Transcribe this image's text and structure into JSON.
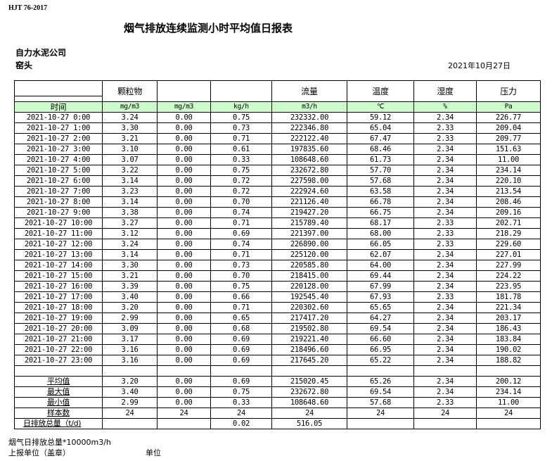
{
  "standard": "HJT  76-2017",
  "title": "烟气排放连续监测小时平均值日报表",
  "company": "自力水泥公司",
  "site": "窑头",
  "date": "2021年10月27日",
  "header": {
    "columns": [
      "",
      "颗粒物",
      "",
      "",
      "流量",
      "温度",
      "湿度",
      "压力"
    ],
    "units": [
      "时间",
      "mg/m3",
      "mg/m3",
      "kg/h",
      "m3/h",
      "℃",
      "%",
      "Pa"
    ]
  },
  "rows": [
    [
      "2021-10-27 0:00",
      "3.24",
      "0.00",
      "0.75",
      "232332.00",
      "59.12",
      "2.34",
      "226.77"
    ],
    [
      "2021-10-27 1:00",
      "3.30",
      "0.00",
      "0.73",
      "222346.80",
      "65.04",
      "2.33",
      "209.04"
    ],
    [
      "2021-10-27 2:00",
      "3.21",
      "0.00",
      "0.71",
      "222122.40",
      "67.47",
      "2.33",
      "209.77"
    ],
    [
      "2021-10-27 3:00",
      "3.10",
      "0.00",
      "0.61",
      "197835.60",
      "68.46",
      "2.34",
      "151.63"
    ],
    [
      "2021-10-27 4:00",
      "3.07",
      "0.00",
      "0.33",
      "108648.60",
      "61.73",
      "2.34",
      "11.00"
    ],
    [
      "2021-10-27 5:00",
      "3.22",
      "0.00",
      "0.75",
      "232672.80",
      "57.70",
      "2.34",
      "234.14"
    ],
    [
      "2021-10-27 6:00",
      "3.14",
      "0.00",
      "0.72",
      "227598.00",
      "57.68",
      "2.34",
      "220.10"
    ],
    [
      "2021-10-27 7:00",
      "3.23",
      "0.00",
      "0.72",
      "222924.60",
      "63.58",
      "2.34",
      "213.54"
    ],
    [
      "2021-10-27 8:00",
      "3.14",
      "0.00",
      "0.70",
      "221126.40",
      "66.78",
      "2.34",
      "208.46"
    ],
    [
      "2021-10-27 9:00",
      "3.38",
      "0.00",
      "0.74",
      "219427.20",
      "66.75",
      "2.34",
      "209.16"
    ],
    [
      "2021-10-27 10:00",
      "3.27",
      "0.00",
      "0.71",
      "215789.40",
      "68.17",
      "2.33",
      "202.71"
    ],
    [
      "2021-10-27 11:00",
      "3.12",
      "0.00",
      "0.69",
      "221397.00",
      "68.00",
      "2.33",
      "218.29"
    ],
    [
      "2021-10-27 12:00",
      "3.24",
      "0.00",
      "0.74",
      "226890.00",
      "66.05",
      "2.33",
      "229.60"
    ],
    [
      "2021-10-27 13:00",
      "3.14",
      "0.00",
      "0.71",
      "225120.00",
      "62.07",
      "2.34",
      "227.01"
    ],
    [
      "2021-10-27 14:00",
      "3.30",
      "0.00",
      "0.73",
      "220585.80",
      "64.00",
      "2.34",
      "227.99"
    ],
    [
      "2021-10-27 15:00",
      "3.21",
      "0.00",
      "0.70",
      "218415.00",
      "69.44",
      "2.34",
      "224.22"
    ],
    [
      "2021-10-27 16:00",
      "3.39",
      "0.00",
      "0.75",
      "220128.00",
      "67.99",
      "2.34",
      "223.95"
    ],
    [
      "2021-10-27 17:00",
      "3.40",
      "0.00",
      "0.66",
      "192545.40",
      "67.93",
      "2.33",
      "181.78"
    ],
    [
      "2021-10-27 18:00",
      "3.20",
      "0.00",
      "0.71",
      "220302.60",
      "65.65",
      "2.34",
      "221.34"
    ],
    [
      "2021-10-27 19:00",
      "2.99",
      "0.00",
      "0.65",
      "217417.20",
      "64.27",
      "2.34",
      "203.17"
    ],
    [
      "2021-10-27 20:00",
      "3.09",
      "0.00",
      "0.68",
      "219502.80",
      "69.54",
      "2.34",
      "186.43"
    ],
    [
      "2021-10-27 21:00",
      "3.17",
      "0.00",
      "0.69",
      "219221.40",
      "66.60",
      "2.34",
      "183.84"
    ],
    [
      "2021-10-27 22:00",
      "3.16",
      "0.00",
      "0.69",
      "218496.60",
      "66.95",
      "2.34",
      "190.02"
    ],
    [
      "2021-10-27 23:00",
      "3.16",
      "0.00",
      "0.69",
      "217645.20",
      "65.22",
      "2.34",
      "188.82"
    ]
  ],
  "stats": [
    [
      "平均值",
      "3.20",
      "0.00",
      "0.69",
      "215020.45",
      "65.26",
      "2.34",
      "200.12"
    ],
    [
      "最大值",
      "3.40",
      "0.00",
      "0.75",
      "232672.80",
      "69.54",
      "2.34",
      "234.14"
    ],
    [
      "最小值",
      "2.99",
      "0.00",
      "0.33",
      "108648.60",
      "57.68",
      "2.33",
      "11.00"
    ],
    [
      "样本数",
      "24",
      "24",
      "24",
      "24",
      "24",
      "24",
      "24"
    ],
    [
      "日排放总量（t/d)",
      "",
      "",
      "0.02",
      "516.05",
      "",
      "",
      ""
    ]
  ],
  "footer": {
    "note": "烟气日排放总量*10000m3/h",
    "reporter": "上报单位（盖章）",
    "unit": "单位"
  },
  "colors": {
    "unit_row_bg": "#ccffcc"
  }
}
